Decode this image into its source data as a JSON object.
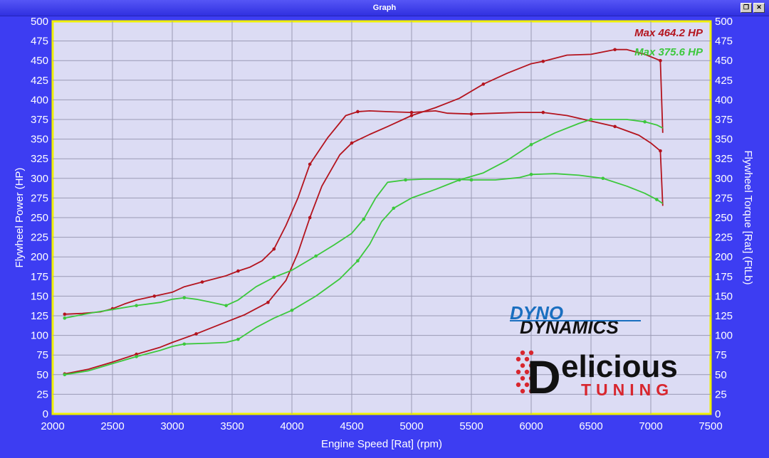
{
  "window": {
    "title": "Graph",
    "restore_glyph": "❐",
    "close_glyph": "✕"
  },
  "logos": {
    "dyno_line1": "DYNO",
    "dyno_line2": "DYNAMICS",
    "brand_main": "elicious",
    "brand_letter": "D",
    "brand_sub": "TUNING"
  },
  "colors": {
    "background": "#3d3df2",
    "plot_bg": "#dcdcf4",
    "frame": "#f0f000",
    "red": "#b4141e",
    "green": "#3cc83c"
  },
  "chart_data": {
    "type": "line",
    "xlabel": "Engine Speed [Rat] (rpm)",
    "ylabel_left": "Flywheel Power (HP)",
    "ylabel_right": "Flywheel Torque [Rat] (FtLb)",
    "xlim": [
      2000,
      7500
    ],
    "ylim": [
      0,
      500
    ],
    "x_ticks": [
      "2000",
      "2500",
      "3000",
      "3500",
      "4000",
      "4500",
      "5000",
      "5500",
      "6000",
      "6500",
      "7000",
      "7500"
    ],
    "y_ticks": [
      "0",
      "25",
      "50",
      "75",
      "100",
      "125",
      "150",
      "175",
      "200",
      "225",
      "250",
      "275",
      "300",
      "325",
      "350",
      "375",
      "400",
      "425",
      "450",
      "475",
      "500"
    ],
    "grid": true,
    "annotations": [
      {
        "text": "Max 464.2 HP",
        "color": "#b4141e"
      },
      {
        "text": "Max 375.6 HP",
        "color": "#3cc83c"
      }
    ],
    "series": [
      {
        "id": "red_power",
        "color": "#b4141e",
        "x": [
          2100,
          2300,
          2500,
          2700,
          2900,
          3000,
          3200,
          3400,
          3600,
          3800,
          3950,
          4050,
          4150,
          4250,
          4400,
          4500,
          4650,
          4800,
          5000,
          5200,
          5400,
          5600,
          5800,
          6000,
          6100,
          6300,
          6500,
          6700,
          6800,
          6950,
          7080,
          7100
        ],
        "y": [
          51,
          57,
          66,
          76,
          85,
          91,
          102,
          114,
          126,
          142,
          170,
          205,
          250,
          290,
          330,
          345,
          356,
          366,
          380,
          390,
          402,
          420,
          434,
          446,
          449,
          457,
          458,
          464,
          464,
          458,
          450,
          358
        ]
      },
      {
        "id": "red_torque",
        "color": "#b4141e",
        "x": [
          2100,
          2250,
          2400,
          2500,
          2600,
          2700,
          2850,
          3000,
          3100,
          3250,
          3350,
          3450,
          3550,
          3650,
          3750,
          3850,
          3950,
          4050,
          4150,
          4300,
          4450,
          4550,
          4650,
          4800,
          5000,
          5200,
          5300,
          5500,
          5700,
          5900,
          6100,
          6300,
          6500,
          6700,
          6900,
          7000,
          7080,
          7100
        ],
        "y": [
          127,
          128,
          130,
          134,
          140,
          145,
          150,
          155,
          162,
          168,
          172,
          176,
          182,
          187,
          195,
          210,
          240,
          275,
          318,
          352,
          380,
          385,
          386,
          385,
          384,
          386,
          383,
          382,
          383,
          384,
          384,
          380,
          373,
          366,
          355,
          345,
          335,
          265
        ]
      },
      {
        "id": "green_power",
        "color": "#3cc83c",
        "x": [
          2100,
          2300,
          2500,
          2700,
          2900,
          3000,
          3100,
          3300,
          3450,
          3550,
          3700,
          3850,
          4000,
          4200,
          4400,
          4550,
          4650,
          4750,
          4850,
          5000,
          5200,
          5400,
          5600,
          5800,
          6000,
          6200,
          6400,
          6500,
          6600,
          6800,
          6950,
          7050,
          7100
        ],
        "y": [
          50,
          55,
          64,
          73,
          81,
          86,
          89,
          90,
          91,
          95,
          110,
          122,
          132,
          150,
          172,
          195,
          216,
          245,
          262,
          275,
          286,
          298,
          307,
          323,
          343,
          358,
          370,
          375,
          375,
          375,
          372,
          368,
          364
        ]
      },
      {
        "id": "green_torque",
        "color": "#3cc83c",
        "x": [
          2100,
          2300,
          2500,
          2700,
          2900,
          3000,
          3100,
          3200,
          3300,
          3450,
          3550,
          3700,
          3850,
          4000,
          4100,
          4200,
          4350,
          4500,
          4600,
          4700,
          4800,
          4950,
          5100,
          5300,
          5500,
          5700,
          5900,
          6000,
          6200,
          6400,
          6600,
          6800,
          6950,
          7050,
          7100
        ],
        "y": [
          122,
          128,
          133,
          138,
          142,
          146,
          148,
          146,
          143,
          138,
          145,
          162,
          174,
          183,
          192,
          201,
          215,
          230,
          248,
          275,
          295,
          298,
          299,
          299,
          298,
          298,
          301,
          305,
          306,
          304,
          300,
          290,
          281,
          273,
          268
        ]
      }
    ]
  }
}
